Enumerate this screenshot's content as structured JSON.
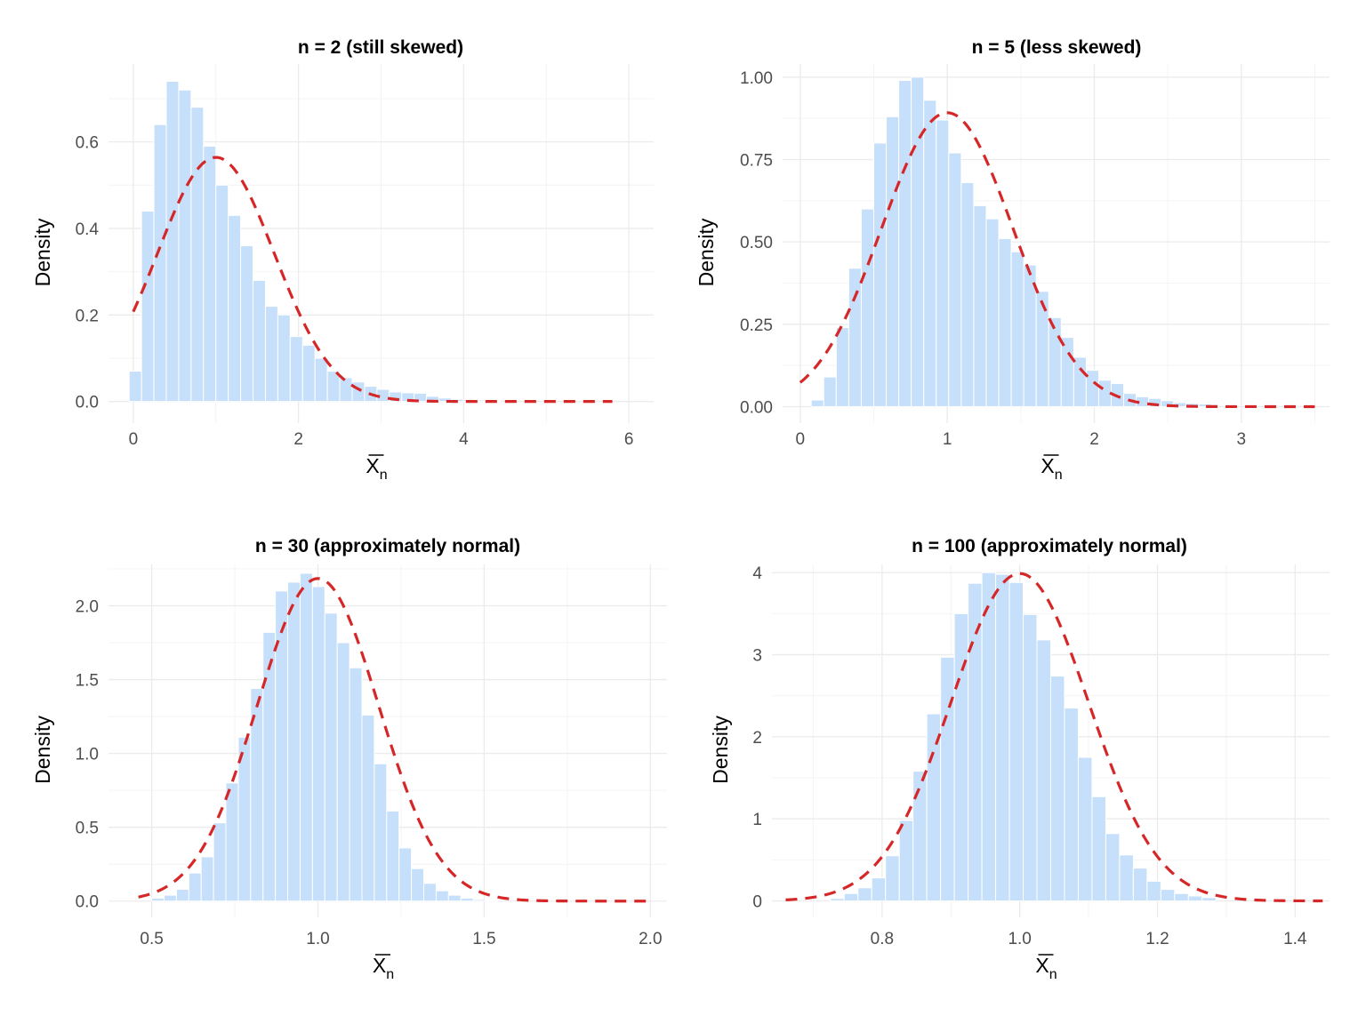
{
  "chart_data": [
    {
      "type": "bar",
      "title": "n = 2 (still skewed)",
      "xlabel": "X",
      "xlabel_sub": "n",
      "ylabel": "Density",
      "xlim": [
        -0.3,
        6.3
      ],
      "ylim": [
        -0.05,
        0.78
      ],
      "xticks": [
        0,
        2,
        4,
        6
      ],
      "xtick_labels": [
        "0",
        "2",
        "4",
        "6"
      ],
      "yticks": [
        0.0,
        0.2,
        0.4,
        0.6
      ],
      "ytick_labels": [
        "0.0",
        "0.2",
        "0.4",
        "0.6"
      ],
      "bar_color": "#c6dffa",
      "curve_color": "#d62728",
      "bin_start": -0.05,
      "bin_width": 0.15,
      "values": [
        0.07,
        0.44,
        0.64,
        0.74,
        0.72,
        0.68,
        0.59,
        0.5,
        0.43,
        0.36,
        0.28,
        0.22,
        0.2,
        0.15,
        0.13,
        0.1,
        0.07,
        0.055,
        0.045,
        0.035,
        0.028,
        0.022,
        0.02,
        0.019,
        0.012,
        0.008,
        0.005,
        0.004,
        0.003,
        0.002
      ],
      "curve": {
        "mean": 1.0,
        "sd": 0.7071,
        "x_from": 0.0,
        "x_to": 5.8
      }
    },
    {
      "type": "bar",
      "title": "n = 5 (less skewed)",
      "xlabel": "X",
      "xlabel_sub": "n",
      "ylabel": "Density",
      "xlim": [
        -0.12,
        3.6
      ],
      "ylim": [
        -0.05,
        1.04
      ],
      "xticks": [
        0,
        1,
        2,
        3
      ],
      "xtick_labels": [
        "0",
        "1",
        "2",
        "3"
      ],
      "yticks": [
        0.0,
        0.25,
        0.5,
        0.75,
        1.0
      ],
      "ytick_labels": [
        "0.00",
        "0.25",
        "0.50",
        "0.75",
        "1.00"
      ],
      "bar_color": "#c6dffa",
      "curve_color": "#d62728",
      "bin_start": 0.075,
      "bin_width": 0.085,
      "values": [
        0.02,
        0.09,
        0.24,
        0.42,
        0.6,
        0.8,
        0.88,
        0.99,
        1.0,
        0.93,
        0.87,
        0.77,
        0.68,
        0.61,
        0.57,
        0.51,
        0.47,
        0.43,
        0.35,
        0.27,
        0.21,
        0.15,
        0.11,
        0.08,
        0.07,
        0.04,
        0.03,
        0.025,
        0.018,
        0.012,
        0.01,
        0.008
      ],
      "curve": {
        "mean": 1.0,
        "sd": 0.4472,
        "x_from": 0.0,
        "x_to": 3.5
      }
    },
    {
      "type": "bar",
      "title": "n = 30 (approximately normal)",
      "xlabel": "X",
      "xlabel_sub": "n",
      "ylabel": "Density",
      "xlim": [
        0.37,
        2.05
      ],
      "ylim": [
        -0.11,
        2.28
      ],
      "xticks": [
        0.5,
        1.0,
        1.5,
        2.0
      ],
      "xtick_labels": [
        "0.5",
        "1.0",
        "1.5",
        "2.0"
      ],
      "yticks": [
        0.0,
        0.5,
        1.0,
        1.5,
        2.0
      ],
      "ytick_labels": [
        "0.0",
        "0.5",
        "1.0",
        "1.5",
        "2.0"
      ],
      "bar_color": "#c6dffa",
      "curve_color": "#d62728",
      "bin_start": 0.5,
      "bin_width": 0.0372,
      "values": [
        0.02,
        0.04,
        0.08,
        0.19,
        0.3,
        0.53,
        0.8,
        1.11,
        1.44,
        1.82,
        2.1,
        2.16,
        2.22,
        2.13,
        1.95,
        1.75,
        1.58,
        1.26,
        0.93,
        0.61,
        0.36,
        0.22,
        0.12,
        0.07,
        0.04,
        0.02,
        0.01,
        0.005
      ],
      "curve": {
        "mean": 1.0,
        "sd": 0.1826,
        "x_from": 0.46,
        "x_to": 2.0
      }
    },
    {
      "type": "bar",
      "title": "n = 100 (approximately normal)",
      "xlabel": "X",
      "xlabel_sub": "n",
      "ylabel": "Density",
      "xlim": [
        0.64,
        1.45
      ],
      "ylim": [
        -0.2,
        4.1
      ],
      "xticks": [
        0.8,
        1.0,
        1.2,
        1.4
      ],
      "xtick_labels": [
        "0.8",
        "1.0",
        "1.2",
        "1.4"
      ],
      "yticks": [
        0,
        1,
        2,
        3,
        4
      ],
      "ytick_labels": [
        "0",
        "1",
        "2",
        "3",
        "4"
      ],
      "bar_color": "#c6dffa",
      "curve_color": "#d62728",
      "bin_start": 0.725,
      "bin_width": 0.02,
      "values": [
        0.03,
        0.09,
        0.16,
        0.28,
        0.55,
        0.98,
        1.58,
        2.28,
        2.97,
        3.5,
        3.87,
        4.0,
        3.98,
        3.88,
        3.49,
        3.18,
        2.74,
        2.35,
        1.75,
        1.27,
        0.82,
        0.56,
        0.4,
        0.24,
        0.14,
        0.09,
        0.06,
        0.04
      ],
      "curve": {
        "mean": 1.0,
        "sd": 0.1,
        "x_from": 0.66,
        "x_to": 1.44
      }
    }
  ]
}
